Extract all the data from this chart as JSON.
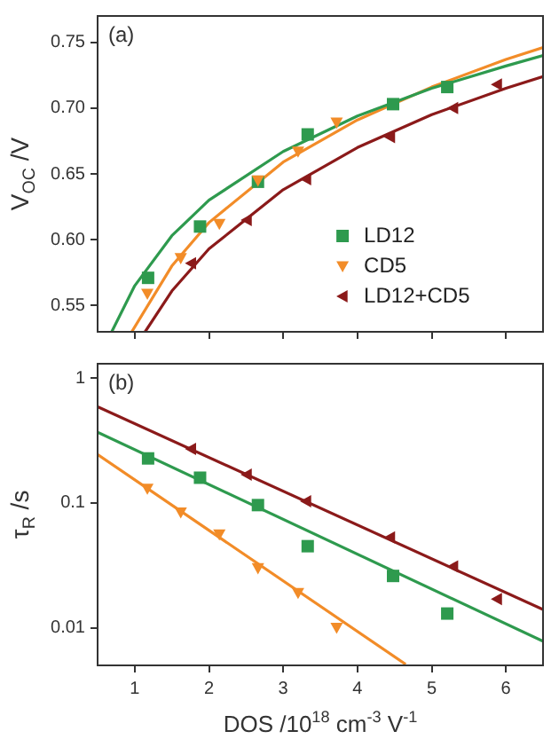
{
  "chart_data": [
    {
      "type": "scatter",
      "ylabel": "V$_{OC}$ /V",
      "annotations": [
        "(a)"
      ],
      "xlim": [
        0.5,
        6.5
      ],
      "xticks": [
        1,
        2,
        3,
        4,
        5,
        6
      ],
      "ylim": [
        0.53,
        0.77
      ],
      "yticks": [
        0.55,
        {
          "value": 0.6,
          "label": "0.60"
        },
        0.65,
        {
          "value": 0.7,
          "label": "0.70"
        },
        0.75
      ],
      "tick_labels": "y",
      "legend": "bottom right",
      "series": [
        {
          "name": "LD12",
          "color": "#2e9a4e",
          "marker": "square",
          "x": [
            1.18,
            1.88,
            2.66,
            3.33,
            4.48,
            5.21
          ],
          "values": [
            0.571,
            0.61,
            0.644,
            0.68,
            0.703,
            0.716
          ]
        },
        {
          "name": "CD5",
          "color": "#f28c28",
          "marker": "triangle-down",
          "x": [
            1.17,
            1.62,
            2.14,
            2.66,
            3.2,
            3.72
          ],
          "values": [
            0.559,
            0.586,
            0.612,
            0.645,
            0.667,
            0.689
          ]
        },
        {
          "name": "LD12+CD5",
          "color": "#8b1a1a",
          "marker": "triangle-left",
          "x": [
            1.76,
            2.51,
            3.31,
            4.44,
            5.29,
            5.88
          ],
          "values": [
            0.582,
            0.615,
            0.646,
            0.678,
            0.7,
            0.718
          ]
        },
        {
          "type": "line",
          "color": "#2e9a4e",
          "marker": "none",
          "x": [
            0.69,
            1,
            1.5,
            2,
            3,
            4,
            5,
            6,
            6.5
          ],
          "values": [
            0.53,
            0.565,
            0.603,
            0.63,
            0.667,
            0.694,
            0.715,
            0.732,
            0.74
          ]
        },
        {
          "type": "line",
          "color": "#f28c28",
          "marker": "none",
          "x": [
            0.96,
            1.5,
            2,
            3,
            4,
            5,
            6,
            6.5
          ],
          "values": [
            0.53,
            0.58,
            0.613,
            0.659,
            0.691,
            0.716,
            0.737,
            0.746
          ]
        },
        {
          "type": "line",
          "color": "#8b1a1a",
          "marker": "none",
          "x": [
            1.14,
            1.5,
            2,
            3,
            4,
            5,
            6,
            6.5
          ],
          "values": [
            0.53,
            0.561,
            0.593,
            0.638,
            0.67,
            0.695,
            0.715,
            0.724
          ]
        }
      ]
    },
    {
      "type": "scatter",
      "xlabel": "DOS /10$^{18}$ cm$^{-3}$ V$^{-1}$",
      "ylabel": "τ$_{R}$ /s",
      "annotations": [
        "(b)"
      ],
      "log": "y",
      "xlim": [
        0.5,
        6.5
      ],
      "xticks": [
        1,
        2,
        3,
        4,
        5,
        6
      ],
      "ylim": [
        0.005,
        1.3
      ],
      "yticks": [
        0.01,
        0.1,
        1
      ],
      "series": [
        {
          "color": "#2e9a4e",
          "marker": "square",
          "x": [
            1.18,
            1.88,
            2.66,
            3.33,
            4.48,
            5.21
          ],
          "values": [
            0.227,
            0.159,
            0.096,
            0.045,
            0.026,
            0.013
          ]
        },
        {
          "color": "#f28c28",
          "marker": "triangle-down",
          "x": [
            1.17,
            1.62,
            2.14,
            2.66,
            3.2,
            3.72
          ],
          "values": [
            0.13,
            0.084,
            0.056,
            0.03,
            0.019,
            0.01
          ]
        },
        {
          "color": "#8b1a1a",
          "marker": "triangle-left",
          "x": [
            1.76,
            2.51,
            3.31,
            4.44,
            5.29,
            5.88
          ],
          "values": [
            0.27,
            0.168,
            0.103,
            0.053,
            0.031,
            0.017
          ]
        },
        {
          "type": "line",
          "color": "#2e9a4e",
          "marker": "none",
          "x": [
            0.5,
            6.5
          ],
          "values": [
            0.368,
            0.0078
          ]
        },
        {
          "type": "line",
          "color": "#f28c28",
          "marker": "none",
          "x": [
            0.5,
            4.65
          ],
          "values": [
            0.244,
            0.0051
          ]
        },
        {
          "type": "line",
          "color": "#8b1a1a",
          "marker": "none",
          "x": [
            0.5,
            6.5
          ],
          "values": [
            0.588,
            0.014
          ]
        }
      ]
    }
  ]
}
